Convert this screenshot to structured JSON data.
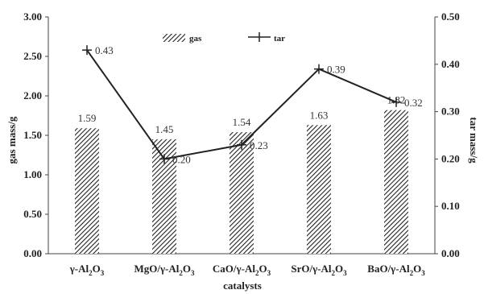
{
  "chart_data": {
    "type": "bar+line",
    "categories": [
      {
        "base": "γ-Al",
        "s1": "2",
        "mid": "O",
        "s2": "3"
      },
      {
        "base": "MgO/γ-Al",
        "s1": "2",
        "mid": "O",
        "s2": "3"
      },
      {
        "base": "CaO/γ-Al",
        "s1": "2",
        "mid": "O",
        "s2": "3"
      },
      {
        "base": "SrO/γ-Al",
        "s1": "2",
        "mid": "O",
        "s2": "3"
      },
      {
        "base": "BaO/γ-Al",
        "s1": "2",
        "mid": "O",
        "s2": "3"
      }
    ],
    "xlabel": "catalysts",
    "ylabel": "gas mass/g",
    "y2label": "tar mass/g",
    "ylim": [
      0,
      3.0
    ],
    "y2lim": [
      0,
      0.5
    ],
    "yticks": [
      "0.00",
      "0.50",
      "1.00",
      "1.50",
      "2.00",
      "2.50",
      "3.00"
    ],
    "y2ticks": [
      "0.00",
      "0.10",
      "0.20",
      "0.30",
      "0.40",
      "0.50"
    ],
    "series": [
      {
        "name": "gas",
        "kind": "bar",
        "axis": "left",
        "values": [
          1.59,
          1.45,
          1.54,
          1.63,
          1.82
        ],
        "labels": [
          "1.59",
          "1.45",
          "1.54",
          "1.63",
          "1.82"
        ]
      },
      {
        "name": "tar",
        "kind": "line",
        "axis": "right",
        "values": [
          0.43,
          0.2,
          0.23,
          0.39,
          0.32
        ],
        "labels": [
          "0.43",
          "0.20",
          "0.23",
          "0.39",
          "0.32"
        ]
      }
    ],
    "legend": "top-center",
    "grid": false
  }
}
